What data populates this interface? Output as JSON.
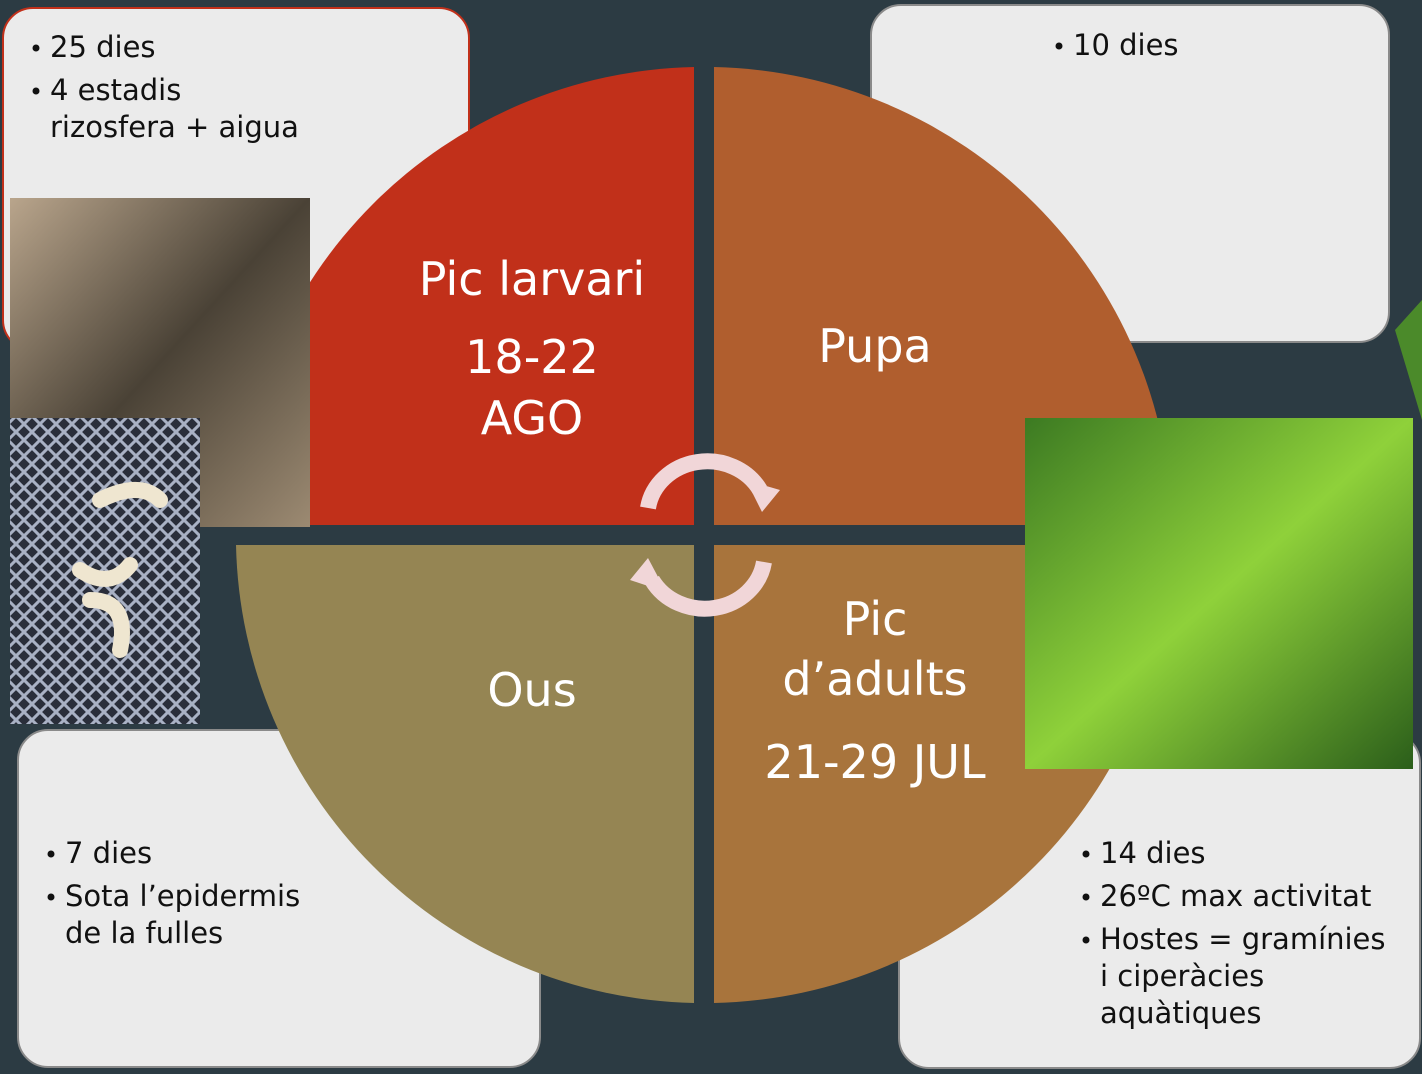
{
  "quadrants": [
    {
      "lines": [
        "Pic larvari",
        "18-22",
        "AGO"
      ]
    },
    {
      "lines": [
        "Pupa"
      ]
    },
    {
      "lines": [
        "Ous"
      ]
    },
    {
      "lines": [
        "Pic",
        "d’adults",
        "21-29 JUL"
      ]
    }
  ],
  "boxes": [
    {
      "items": [
        [
          "25 dies"
        ],
        [
          "4 estadis",
          "rizosfera + aigua"
        ]
      ]
    },
    {
      "items": [
        [
          "10 dies"
        ]
      ]
    },
    {
      "items": [
        [
          "7 dies"
        ],
        [
          "Sota l’epidermis",
          "de la fulles"
        ]
      ]
    },
    {
      "items": [
        [
          "14 dies"
        ],
        [
          "26ºC max activitat"
        ],
        [
          "Hostes = gramínies",
          "i ciperàcies",
          "aquàtiques"
        ]
      ]
    }
  ]
}
